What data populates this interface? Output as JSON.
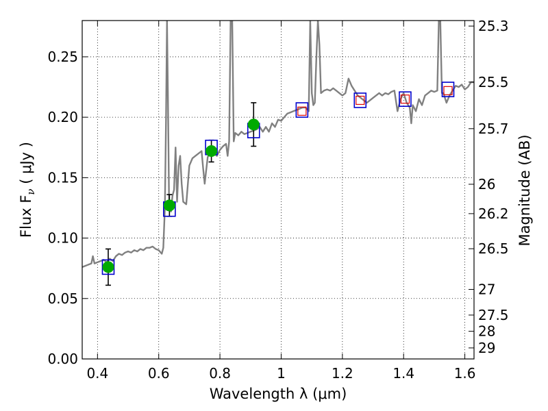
{
  "chart_data": {
    "type": "line",
    "xlabel": "Wavelength  λ (μm)",
    "ylabel": "Flux  F",
    "ylabel_sub": "ν",
    "ylabel_unit": "  ( μJy )",
    "y2label": "Magnitude (AB)",
    "xlim": [
      0.35,
      1.63
    ],
    "ylim": [
      0.0,
      0.28
    ],
    "grid": true,
    "x_ticks": [
      {
        "value": 0.4,
        "label": "0.4"
      },
      {
        "value": 0.6,
        "label": "0.6"
      },
      {
        "value": 0.8,
        "label": "0.8"
      },
      {
        "value": 1.0,
        "label": "1"
      },
      {
        "value": 1.2,
        "label": "1.2"
      },
      {
        "value": 1.4,
        "label": "1.4"
      },
      {
        "value": 1.6,
        "label": "1.6"
      }
    ],
    "y_ticks": [
      {
        "value": 0.0,
        "label": "0.00"
      },
      {
        "value": 0.05,
        "label": "0.05"
      },
      {
        "value": 0.1,
        "label": "0.10"
      },
      {
        "value": 0.15,
        "label": "0.15"
      },
      {
        "value": 0.2,
        "label": "0.20"
      },
      {
        "value": 0.25,
        "label": "0.25"
      }
    ],
    "y2_ticks": [
      {
        "value": 25.3,
        "label": "25.3"
      },
      {
        "value": 25.5,
        "label": "25.5"
      },
      {
        "value": 25.7,
        "label": "25.7"
      },
      {
        "value": 26.0,
        "label": "26"
      },
      {
        "value": 26.2,
        "label": "26.2"
      },
      {
        "value": 26.5,
        "label": "26.5"
      },
      {
        "value": 27.0,
        "label": "27"
      },
      {
        "value": 27.5,
        "label": "27.5"
      },
      {
        "value": 28.0,
        "label": "28"
      },
      {
        "value": 29.0,
        "label": "29"
      }
    ],
    "spectrum": {
      "color": "#808080",
      "points": [
        [
          0.35,
          0.076
        ],
        [
          0.36,
          0.077
        ],
        [
          0.37,
          0.078
        ],
        [
          0.38,
          0.079
        ],
        [
          0.385,
          0.085
        ],
        [
          0.39,
          0.079
        ],
        [
          0.4,
          0.08
        ],
        [
          0.41,
          0.081
        ],
        [
          0.42,
          0.082
        ],
        [
          0.43,
          0.08
        ],
        [
          0.44,
          0.083
        ],
        [
          0.45,
          0.081
        ],
        [
          0.46,
          0.085
        ],
        [
          0.47,
          0.087
        ],
        [
          0.48,
          0.086
        ],
        [
          0.49,
          0.088
        ],
        [
          0.5,
          0.089
        ],
        [
          0.51,
          0.088
        ],
        [
          0.52,
          0.09
        ],
        [
          0.53,
          0.089
        ],
        [
          0.54,
          0.091
        ],
        [
          0.55,
          0.09
        ],
        [
          0.56,
          0.092
        ],
        [
          0.57,
          0.092
        ],
        [
          0.58,
          0.093
        ],
        [
          0.59,
          0.091
        ],
        [
          0.6,
          0.09
        ],
        [
          0.61,
          0.087
        ],
        [
          0.615,
          0.092
        ],
        [
          0.62,
          0.125
        ],
        [
          0.624,
          0.2
        ],
        [
          0.627,
          0.28
        ],
        [
          0.63,
          0.22
        ],
        [
          0.634,
          0.125
        ],
        [
          0.64,
          0.122
        ],
        [
          0.645,
          0.135
        ],
        [
          0.65,
          0.14
        ],
        [
          0.655,
          0.175
        ],
        [
          0.66,
          0.13
        ],
        [
          0.665,
          0.16
        ],
        [
          0.67,
          0.168
        ],
        [
          0.675,
          0.145
        ],
        [
          0.68,
          0.13
        ],
        [
          0.69,
          0.128
        ],
        [
          0.7,
          0.16
        ],
        [
          0.71,
          0.166
        ],
        [
          0.72,
          0.168
        ],
        [
          0.73,
          0.17
        ],
        [
          0.74,
          0.172
        ],
        [
          0.745,
          0.158
        ],
        [
          0.75,
          0.145
        ],
        [
          0.76,
          0.167
        ],
        [
          0.77,
          0.172
        ],
        [
          0.78,
          0.17
        ],
        [
          0.79,
          0.168
        ],
        [
          0.8,
          0.173
        ],
        [
          0.81,
          0.176
        ],
        [
          0.82,
          0.178
        ],
        [
          0.825,
          0.168
        ],
        [
          0.83,
          0.18
        ],
        [
          0.835,
          0.28
        ],
        [
          0.84,
          0.28
        ],
        [
          0.845,
          0.18
        ],
        [
          0.85,
          0.187
        ],
        [
          0.86,
          0.185
        ],
        [
          0.87,
          0.188
        ],
        [
          0.88,
          0.186
        ],
        [
          0.89,
          0.187
        ],
        [
          0.9,
          0.188
        ],
        [
          0.91,
          0.189
        ],
        [
          0.92,
          0.19
        ],
        [
          0.93,
          0.192
        ],
        [
          0.94,
          0.188
        ],
        [
          0.95,
          0.192
        ],
        [
          0.96,
          0.188
        ],
        [
          0.97,
          0.195
        ],
        [
          0.98,
          0.192
        ],
        [
          0.99,
          0.198
        ],
        [
          1.0,
          0.197
        ],
        [
          1.01,
          0.2
        ],
        [
          1.02,
          0.203
        ],
        [
          1.03,
          0.204
        ],
        [
          1.04,
          0.205
        ],
        [
          1.05,
          0.206
        ],
        [
          1.06,
          0.207
        ],
        [
          1.07,
          0.208
        ],
        [
          1.08,
          0.208
        ],
        [
          1.09,
          0.205
        ],
        [
          1.095,
          0.28
        ],
        [
          1.1,
          0.22
        ],
        [
          1.105,
          0.21
        ],
        [
          1.11,
          0.212
        ],
        [
          1.115,
          0.25
        ],
        [
          1.12,
          0.28
        ],
        [
          1.125,
          0.26
        ],
        [
          1.13,
          0.22
        ],
        [
          1.14,
          0.222
        ],
        [
          1.15,
          0.223
        ],
        [
          1.16,
          0.222
        ],
        [
          1.17,
          0.224
        ],
        [
          1.18,
          0.222
        ],
        [
          1.19,
          0.22
        ],
        [
          1.2,
          0.218
        ],
        [
          1.21,
          0.22
        ],
        [
          1.22,
          0.232
        ],
        [
          1.23,
          0.226
        ],
        [
          1.24,
          0.222
        ],
        [
          1.25,
          0.218
        ],
        [
          1.26,
          0.216
        ],
        [
          1.27,
          0.214
        ],
        [
          1.28,
          0.212
        ],
        [
          1.29,
          0.214
        ],
        [
          1.3,
          0.216
        ],
        [
          1.31,
          0.218
        ],
        [
          1.32,
          0.22
        ],
        [
          1.33,
          0.218
        ],
        [
          1.34,
          0.22
        ],
        [
          1.35,
          0.219
        ],
        [
          1.36,
          0.221
        ],
        [
          1.37,
          0.222
        ],
        [
          1.38,
          0.205
        ],
        [
          1.39,
          0.215
        ],
        [
          1.4,
          0.22
        ],
        [
          1.41,
          0.212
        ],
        [
          1.42,
          0.208
        ],
        [
          1.425,
          0.195
        ],
        [
          1.43,
          0.21
        ],
        [
          1.44,
          0.205
        ],
        [
          1.45,
          0.215
        ],
        [
          1.46,
          0.21
        ],
        [
          1.47,
          0.218
        ],
        [
          1.48,
          0.22
        ],
        [
          1.49,
          0.222
        ],
        [
          1.5,
          0.221
        ],
        [
          1.51,
          0.222
        ],
        [
          1.515,
          0.28
        ],
        [
          1.52,
          0.28
        ],
        [
          1.525,
          0.22
        ],
        [
          1.53,
          0.22
        ],
        [
          1.54,
          0.212
        ],
        [
          1.55,
          0.218
        ],
        [
          1.56,
          0.222
        ],
        [
          1.57,
          0.226
        ],
        [
          1.58,
          0.225
        ],
        [
          1.59,
          0.227
        ],
        [
          1.6,
          0.223
        ],
        [
          1.61,
          0.225
        ],
        [
          1.62,
          0.229
        ],
        [
          1.63,
          0.229
        ]
      ]
    },
    "series": [
      {
        "marker": "filled-circle",
        "color": "#00aa00",
        "points": [
          {
            "x": 0.435,
            "y": 0.076,
            "err": 0.015
          },
          {
            "x": 0.635,
            "y": 0.127,
            "err": 0.009
          },
          {
            "x": 0.772,
            "y": 0.172,
            "err": 0.009
          },
          {
            "x": 0.91,
            "y": 0.194,
            "err": 0.018
          }
        ]
      },
      {
        "marker": "open-square",
        "color": "#0000cc",
        "points": [
          {
            "x": 0.435,
            "y": 0.076
          },
          {
            "x": 0.635,
            "y": 0.124
          },
          {
            "x": 0.772,
            "y": 0.175
          },
          {
            "x": 0.91,
            "y": 0.189
          },
          {
            "x": 1.068,
            "y": 0.206
          },
          {
            "x": 1.258,
            "y": 0.214
          },
          {
            "x": 1.405,
            "y": 0.215
          },
          {
            "x": 1.545,
            "y": 0.223
          }
        ]
      },
      {
        "marker": "small-open-square",
        "color": "#dd0000",
        "points": [
          {
            "x": 1.068,
            "y": 0.205
          },
          {
            "x": 1.258,
            "y": 0.214
          },
          {
            "x": 1.405,
            "y": 0.215
          },
          {
            "x": 1.545,
            "y": 0.222
          }
        ]
      }
    ]
  }
}
